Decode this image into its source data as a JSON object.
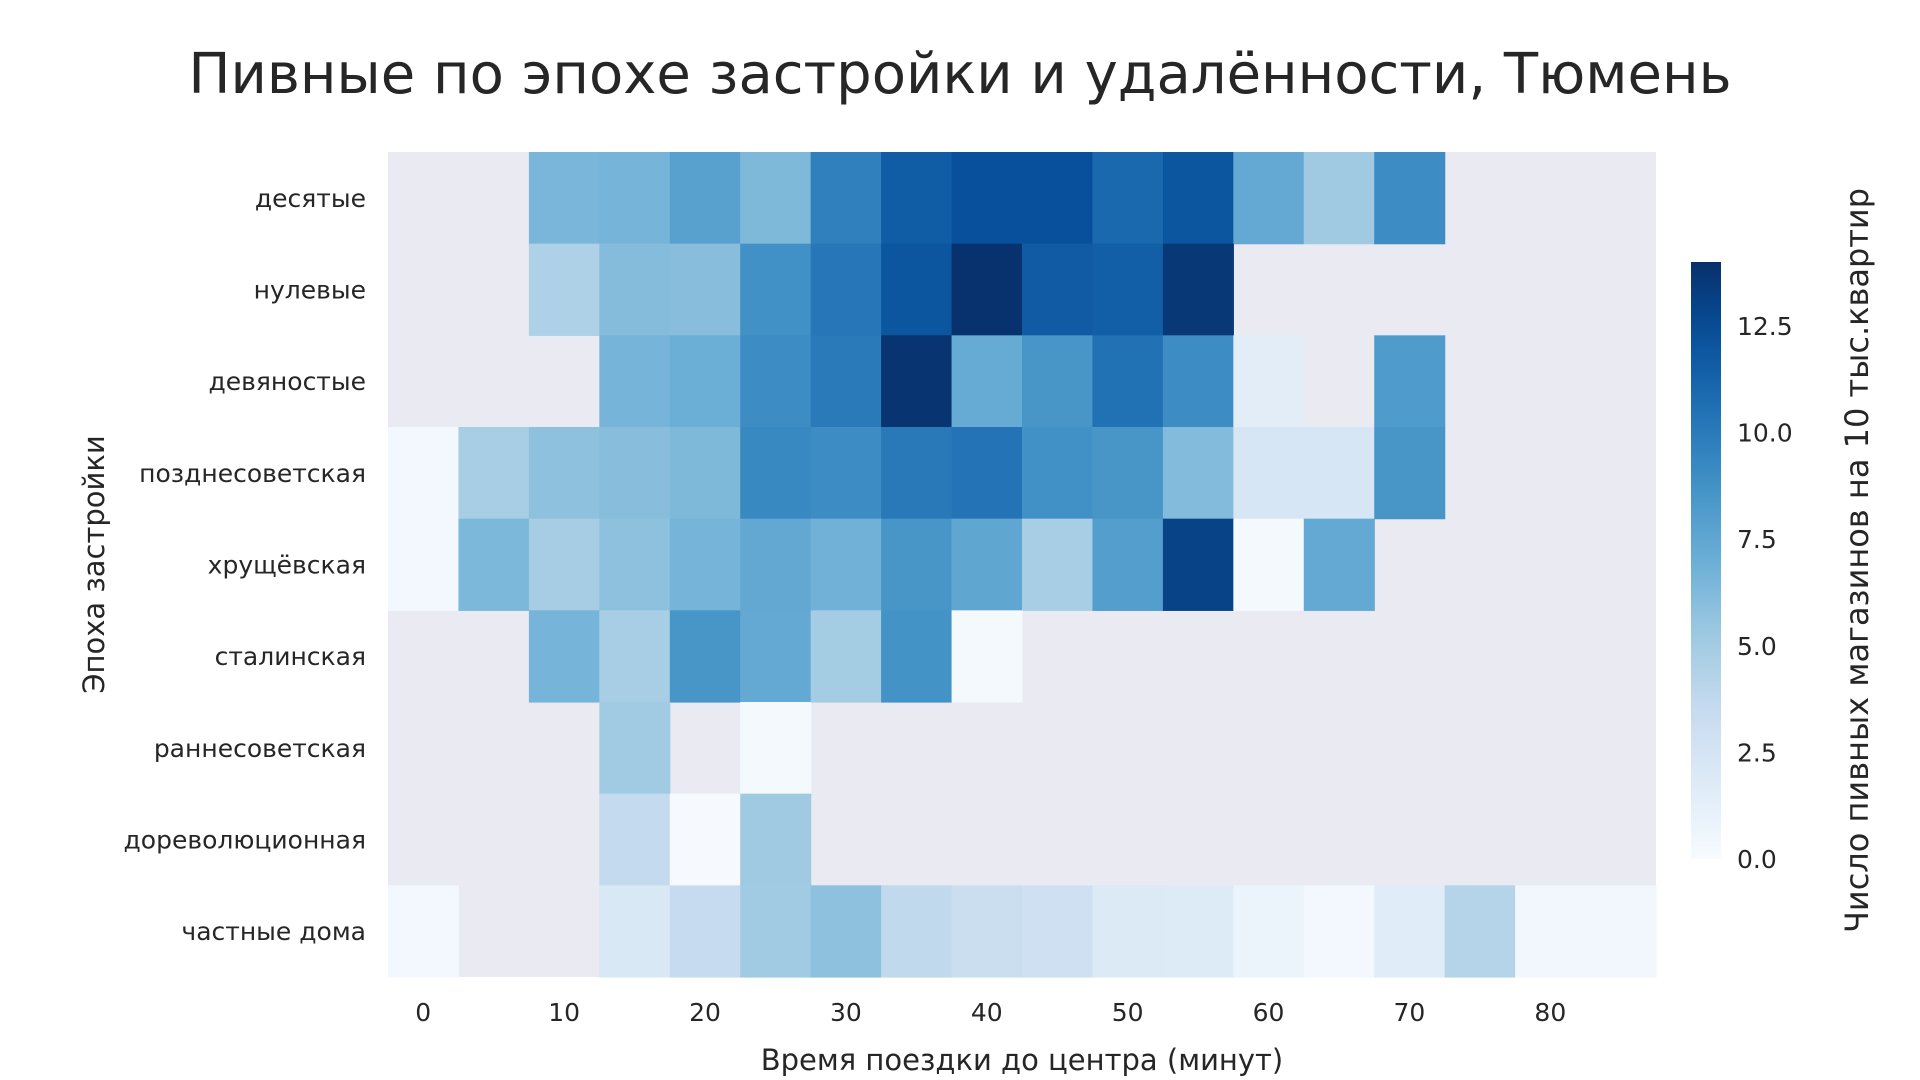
{
  "chart_data": {
    "type": "heatmap",
    "title": "Пивные по эпохе застройки и удалённости, Тюмень",
    "xlabel": "Время поездки до центра (минут)",
    "ylabel": "Эпоха застройки",
    "colorbar_label": "Число пивных магазинов на 10 тыс.квартир",
    "colormap": "Blues",
    "missing_color": "#eaeaf2",
    "vmin": 0,
    "vmax": 14,
    "x": [
      0,
      5,
      10,
      15,
      20,
      25,
      30,
      35,
      40,
      45,
      50,
      55,
      60,
      65,
      70,
      75,
      80,
      85
    ],
    "x_ticks": [
      "0",
      "10",
      "20",
      "30",
      "40",
      "50",
      "60",
      "70",
      "80"
    ],
    "x_tick_values": [
      0,
      10,
      20,
      30,
      40,
      50,
      60,
      70,
      80
    ],
    "colorbar_ticks": [
      "0.0",
      "2.5",
      "5.0",
      "7.5",
      "10.0",
      "12.5"
    ],
    "colorbar_tick_values": [
      0,
      2.5,
      5,
      7.5,
      10,
      12.5
    ],
    "rows": [
      "десятые",
      "нулевые",
      "девяностые",
      "позднесоветская",
      "хрущёвская",
      "сталинская",
      "раннесоветская",
      "дореволюционная",
      "частные дома"
    ],
    "values": [
      [
        null,
        null,
        6.5,
        6.6,
        7.8,
        6.3,
        9.7,
        11.6,
        12.3,
        12.3,
        11.0,
        12.0,
        7.3,
        5.2,
        9.0,
        null,
        null,
        null
      ],
      [
        null,
        null,
        4.5,
        6.1,
        6.0,
        8.8,
        10.2,
        12.0,
        13.9,
        11.7,
        11.5,
        13.6,
        null,
        null,
        null,
        null,
        null,
        null
      ],
      [
        null,
        null,
        null,
        6.6,
        7.0,
        9.0,
        10.0,
        13.8,
        7.2,
        8.5,
        10.5,
        9.0,
        1.5,
        null,
        8.2,
        null,
        null,
        null
      ],
      [
        0.3,
        4.8,
        5.8,
        6.0,
        6.3,
        9.3,
        9.0,
        10.1,
        10.4,
        8.8,
        8.5,
        6.2,
        2.3,
        2.3,
        8.5,
        null,
        null,
        null
      ],
      [
        0.3,
        6.4,
        4.9,
        5.8,
        6.6,
        7.4,
        6.8,
        8.5,
        7.5,
        4.8,
        8.0,
        13.0,
        0.2,
        7.3,
        null,
        null,
        null,
        null
      ],
      [
        null,
        null,
        6.6,
        4.8,
        8.5,
        7.3,
        5.0,
        8.7,
        0.2,
        null,
        null,
        null,
        null,
        null,
        null,
        null,
        null,
        null
      ],
      [
        null,
        null,
        null,
        5.1,
        null,
        0.2,
        null,
        null,
        null,
        null,
        null,
        null,
        null,
        null,
        null,
        null,
        null,
        null
      ],
      [
        null,
        null,
        null,
        3.6,
        0.1,
        5.2,
        null,
        null,
        null,
        null,
        null,
        null,
        null,
        null,
        null,
        null,
        null,
        null
      ],
      [
        0.3,
        null,
        null,
        2.1,
        3.5,
        5.1,
        5.8,
        3.7,
        3.2,
        2.9,
        1.9,
        1.8,
        0.8,
        0.3,
        1.6,
        4.2,
        0.4,
        0.4
      ]
    ]
  }
}
